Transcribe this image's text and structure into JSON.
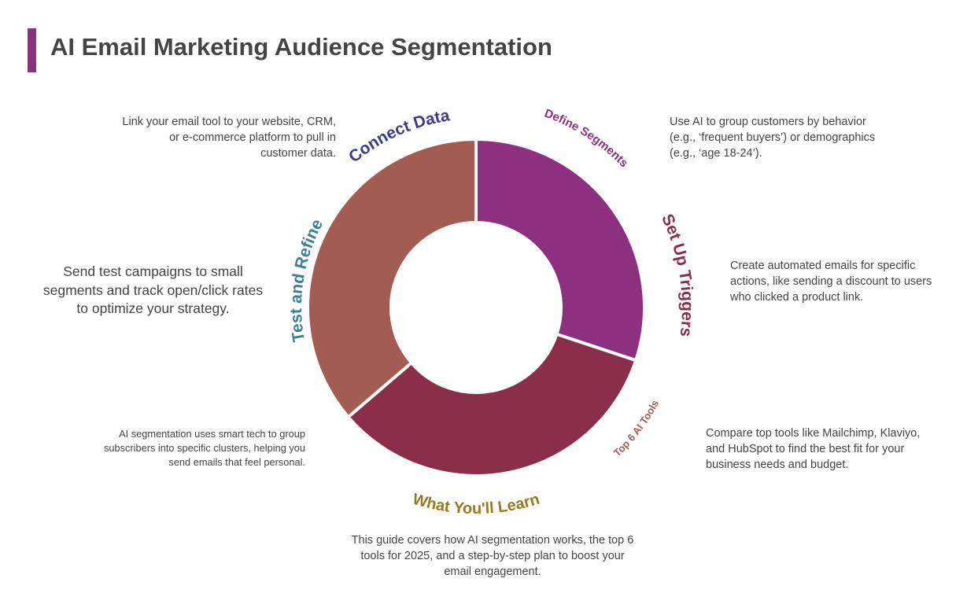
{
  "title": "AI Email Marketing Audience Segmentation",
  "nodes": [
    {
      "label": "Connect Data",
      "description": "Link your email tool to your website, CRM, or e-commerce platform to pull in customer data."
    },
    {
      "label": "Define Segments",
      "description": "Use AI to group customers by behavior (e.g., ‘frequent buyers’) or demographics (e.g., ‘age 18-24’)."
    },
    {
      "label": "Set Up Triggers",
      "description": "Create automated emails for specific actions, like sending a discount to users who clicked a product link."
    },
    {
      "label": "Top 6 AI Tools",
      "description": "Compare top tools like Mailchimp, Klaviyo, and HubSpot to find the best fit for your business needs and budget."
    },
    {
      "label": "What You'll Learn",
      "description": "This guide covers how AI segmentation works, the top 6 tools for 2025, and a step-by-step plan to boost your email engagement."
    },
    {
      "label": "Test and Refine",
      "description": "Send test campaigns to small segments and track open/click rates to optimize your strategy."
    }
  ],
  "note": "AI segmentation uses smart tech to group subscribers into specific clusters, helping you send emails that feel personal."
}
